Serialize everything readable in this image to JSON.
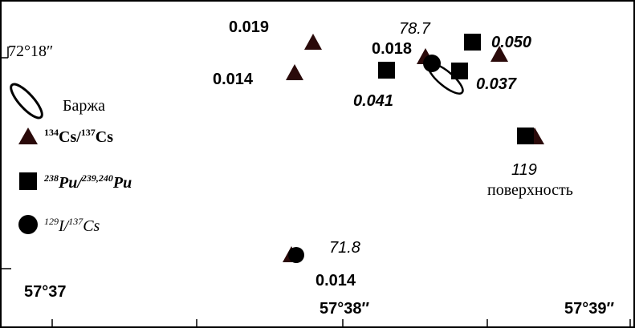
{
  "axes": {
    "lat_top": "72°18″",
    "lon_left": "57°37",
    "lon_mid": "57°38″",
    "lon_right": "57°39″"
  },
  "barge_label": "Баржа",
  "legend": [
    {
      "sup1": "134",
      "el1": "Cs/",
      "sup2": "137",
      "el2": "Cs"
    },
    {
      "sup1": "238",
      "el1": "Pu/",
      "sup2": "239,240",
      "el2": "Pu"
    },
    {
      "sup1": "129",
      "el1": "I/",
      "sup2": "137",
      "el2": "Cs"
    }
  ],
  "labels": {
    "a": "0.019",
    "b": "0.014",
    "c": "0.018",
    "d": "78.7",
    "e": "0.050",
    "f": "0.041",
    "g": "0.037",
    "h": "119",
    "i": "поверхность",
    "j": "71.8",
    "k": "0.014"
  }
}
